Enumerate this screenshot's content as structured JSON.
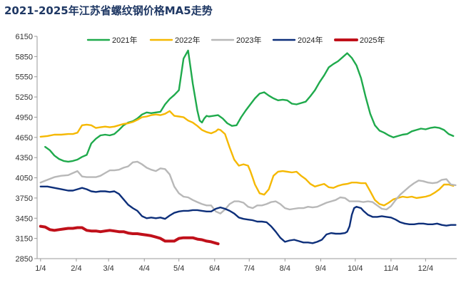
{
  "chart_data": {
    "type": "line",
    "title": "2021-2025年江苏省螺纹钢价格MA5走势",
    "xlabel": "",
    "ylabel": "",
    "ylim": [
      2850,
      6150
    ],
    "yticks": [
      2850,
      3150,
      3450,
      3750,
      4050,
      4350,
      4650,
      4950,
      5250,
      5550,
      5850,
      6150
    ],
    "xlim": [
      1,
      365
    ],
    "x_tick_labels": [
      "1/4",
      "2/4",
      "3/4",
      "4/4",
      "5/4",
      "6/4",
      "7/4",
      "8/4",
      "9/4",
      "10/4",
      "11/4",
      "12/4"
    ],
    "x_tick_days": [
      4,
      35,
      63,
      94,
      124,
      155,
      185,
      216,
      247,
      277,
      308,
      338
    ],
    "grid": false,
    "legend_position": "top",
    "series": [
      {
        "name": "2021年",
        "color": "#1faa4c",
        "x": [
          8,
          12,
          16,
          20,
          24,
          28,
          32,
          36,
          40,
          44,
          48,
          52,
          56,
          60,
          64,
          68,
          72,
          76,
          80,
          84,
          88,
          92,
          96,
          100,
          104,
          108,
          112,
          116,
          120,
          124,
          128,
          132,
          134,
          136,
          138,
          140,
          142,
          144,
          146,
          148,
          150,
          154,
          158,
          162,
          166,
          170,
          174,
          178,
          182,
          186,
          190,
          194,
          198,
          202,
          206,
          210,
          214,
          218,
          222,
          226,
          230,
          234,
          238,
          242,
          246,
          250,
          254,
          258,
          262,
          266,
          270,
          274,
          278,
          282,
          286,
          290,
          294,
          298,
          302,
          306,
          310,
          314,
          318,
          322,
          326,
          330,
          334,
          338,
          342,
          346,
          350,
          354,
          358,
          362
        ],
        "values": [
          4510,
          4460,
          4380,
          4330,
          4300,
          4290,
          4300,
          4320,
          4360,
          4390,
          4560,
          4630,
          4680,
          4690,
          4680,
          4700,
          4760,
          4830,
          4870,
          4890,
          4930,
          4990,
          5020,
          5010,
          5020,
          5030,
          5140,
          5220,
          5280,
          5350,
          5820,
          5940,
          5700,
          5450,
          5250,
          5050,
          4900,
          4870,
          4930,
          4970,
          4960,
          4970,
          4980,
          4930,
          4860,
          4820,
          4830,
          4950,
          5050,
          5140,
          5230,
          5300,
          5320,
          5270,
          5230,
          5200,
          5210,
          5200,
          5150,
          5140,
          5160,
          5180,
          5260,
          5350,
          5470,
          5570,
          5690,
          5740,
          5780,
          5840,
          5900,
          5830,
          5720,
          5530,
          5250,
          5000,
          4830,
          4750,
          4720,
          4680,
          4650,
          4670,
          4690,
          4700,
          4740,
          4760,
          4780,
          4770,
          4790,
          4800,
          4790,
          4760,
          4700,
          4670
        ]
      },
      {
        "name": "2022年",
        "color": "#f5b800",
        "x": [
          4,
          10,
          16,
          22,
          28,
          32,
          36,
          40,
          44,
          48,
          52,
          56,
          60,
          64,
          68,
          72,
          76,
          80,
          84,
          88,
          92,
          96,
          100,
          104,
          108,
          112,
          116,
          120,
          124,
          128,
          132,
          136,
          140,
          144,
          148,
          152,
          156,
          158,
          160,
          164,
          168,
          172,
          176,
          180,
          184,
          186,
          188,
          190,
          194,
          198,
          202,
          206,
          210,
          214,
          218,
          222,
          226,
          230,
          234,
          238,
          242,
          246,
          250,
          254,
          258,
          262,
          266,
          270,
          274,
          278,
          282,
          286,
          290,
          294,
          298,
          302,
          306,
          310,
          314,
          318,
          322,
          326,
          330,
          334,
          338,
          342,
          346,
          350,
          354,
          358,
          362
        ],
        "values": [
          4660,
          4670,
          4690,
          4690,
          4700,
          4700,
          4720,
          4830,
          4840,
          4830,
          4790,
          4800,
          4810,
          4800,
          4810,
          4830,
          4850,
          4860,
          4880,
          4910,
          4950,
          4960,
          4980,
          4990,
          4980,
          5000,
          5040,
          4970,
          4960,
          4950,
          4900,
          4870,
          4820,
          4760,
          4730,
          4710,
          4740,
          4770,
          4760,
          4700,
          4500,
          4320,
          4230,
          4250,
          4230,
          4150,
          4050,
          3950,
          3820,
          3800,
          3880,
          4080,
          4140,
          4150,
          4140,
          4130,
          4140,
          4080,
          4030,
          3960,
          3920,
          3940,
          3960,
          3910,
          3900,
          3930,
          3950,
          3960,
          3980,
          3980,
          3970,
          3970,
          3850,
          3720,
          3660,
          3640,
          3680,
          3730,
          3750,
          3770,
          3760,
          3770,
          3750,
          3760,
          3770,
          3790,
          3830,
          3880,
          3950,
          3950,
          3930
        ]
      },
      {
        "name": "2023年",
        "color": "#b8b8b8",
        "x": [
          4,
          10,
          16,
          22,
          28,
          32,
          36,
          40,
          44,
          48,
          52,
          56,
          60,
          64,
          68,
          72,
          76,
          80,
          84,
          88,
          92,
          96,
          100,
          104,
          108,
          112,
          116,
          120,
          124,
          128,
          132,
          136,
          140,
          144,
          148,
          152,
          156,
          160,
          164,
          168,
          172,
          176,
          180,
          184,
          188,
          192,
          196,
          200,
          204,
          208,
          212,
          216,
          220,
          224,
          228,
          232,
          236,
          240,
          244,
          248,
          252,
          256,
          260,
          264,
          268,
          272,
          276,
          280,
          284,
          288,
          292,
          296,
          300,
          304,
          308,
          312,
          316,
          320,
          324,
          328,
          332,
          336,
          340,
          344,
          348,
          352,
          356,
          360,
          364
        ],
        "values": [
          3980,
          4020,
          4060,
          4080,
          4090,
          4120,
          4150,
          4070,
          4060,
          4060,
          4060,
          4080,
          4120,
          4160,
          4160,
          4170,
          4200,
          4220,
          4280,
          4290,
          4250,
          4200,
          4170,
          4150,
          4190,
          4180,
          4100,
          3920,
          3820,
          3770,
          3760,
          3720,
          3690,
          3660,
          3640,
          3640,
          3550,
          3520,
          3580,
          3660,
          3700,
          3700,
          3680,
          3620,
          3600,
          3640,
          3640,
          3660,
          3690,
          3700,
          3660,
          3600,
          3580,
          3590,
          3600,
          3600,
          3620,
          3610,
          3620,
          3650,
          3680,
          3700,
          3720,
          3760,
          3750,
          3700,
          3700,
          3700,
          3690,
          3700,
          3690,
          3640,
          3590,
          3580,
          3630,
          3720,
          3800,
          3860,
          3920,
          3970,
          4010,
          4000,
          3980,
          3970,
          3980,
          4020,
          4030,
          3950,
          3940
        ]
      },
      {
        "name": "2024年",
        "color": "#0d2f7a",
        "x": [
          4,
          10,
          16,
          22,
          28,
          32,
          36,
          40,
          44,
          48,
          52,
          56,
          60,
          64,
          68,
          72,
          76,
          80,
          84,
          88,
          92,
          96,
          100,
          104,
          108,
          112,
          116,
          120,
          124,
          128,
          132,
          136,
          140,
          144,
          148,
          152,
          156,
          160,
          164,
          168,
          172,
          176,
          180,
          184,
          188,
          192,
          196,
          200,
          204,
          208,
          212,
          216,
          220,
          224,
          228,
          232,
          236,
          240,
          244,
          248,
          252,
          256,
          260,
          264,
          268,
          270,
          272,
          274,
          276,
          278,
          280,
          282,
          284,
          288,
          292,
          296,
          300,
          304,
          308,
          312,
          316,
          320,
          324,
          328,
          332,
          336,
          340,
          344,
          348,
          352,
          356,
          360,
          364
        ],
        "values": [
          3920,
          3920,
          3900,
          3880,
          3860,
          3860,
          3880,
          3900,
          3880,
          3850,
          3840,
          3850,
          3850,
          3840,
          3850,
          3810,
          3730,
          3650,
          3600,
          3560,
          3480,
          3450,
          3460,
          3450,
          3460,
          3440,
          3490,
          3530,
          3550,
          3560,
          3560,
          3570,
          3570,
          3560,
          3550,
          3550,
          3590,
          3610,
          3590,
          3560,
          3520,
          3460,
          3440,
          3430,
          3420,
          3400,
          3400,
          3390,
          3330,
          3250,
          3160,
          3100,
          3120,
          3130,
          3110,
          3090,
          3090,
          3080,
          3100,
          3130,
          3210,
          3230,
          3220,
          3220,
          3230,
          3250,
          3330,
          3500,
          3600,
          3620,
          3610,
          3600,
          3560,
          3500,
          3470,
          3470,
          3480,
          3470,
          3460,
          3430,
          3390,
          3370,
          3360,
          3360,
          3370,
          3370,
          3360,
          3360,
          3370,
          3350,
          3340,
          3350,
          3350
        ]
      },
      {
        "name": "2025年",
        "color": "#c0101a",
        "x": [
          4,
          8,
          12,
          16,
          20,
          24,
          28,
          32,
          36,
          40,
          44,
          48,
          52,
          56,
          60,
          64,
          68,
          72,
          76,
          80,
          84,
          88,
          92,
          96,
          100,
          104,
          108,
          112,
          116,
          120,
          124,
          128,
          132,
          136,
          140,
          144,
          148,
          152,
          156,
          158
        ],
        "values": [
          3330,
          3320,
          3280,
          3270,
          3280,
          3290,
          3300,
          3300,
          3310,
          3310,
          3270,
          3260,
          3260,
          3250,
          3260,
          3270,
          3260,
          3250,
          3250,
          3230,
          3220,
          3220,
          3210,
          3200,
          3190,
          3170,
          3150,
          3110,
          3110,
          3110,
          3150,
          3160,
          3160,
          3160,
          3140,
          3130,
          3110,
          3100,
          3080,
          3070
        ]
      }
    ]
  }
}
